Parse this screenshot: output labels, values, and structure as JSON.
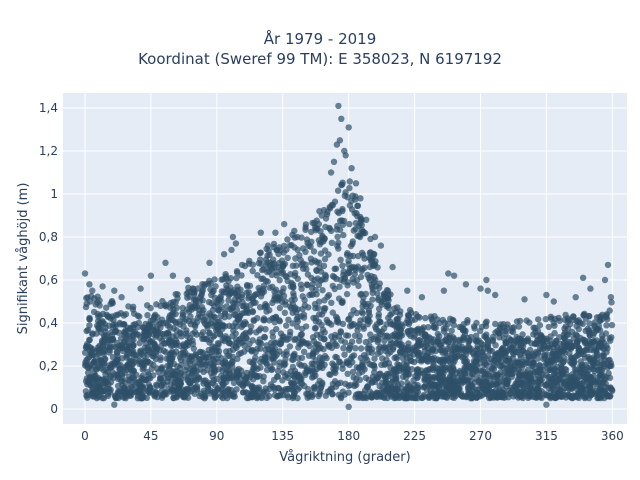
{
  "chart_data": {
    "type": "scatter",
    "title_lines": [
      "År 1979 - 2019",
      "Koordinat (Sweref 99 TM): E 358023, N 6197192"
    ],
    "xlabel": "Vågriktning (grader)",
    "ylabel": "Signifikant våghöjd (m)",
    "xlim": [
      -15,
      370
    ],
    "ylim": [
      -0.07,
      1.47
    ],
    "x_ticks": [
      0,
      45,
      90,
      135,
      180,
      225,
      270,
      315,
      360
    ],
    "x_tick_labels": [
      "0",
      "45",
      "90",
      "135",
      "180",
      "225",
      "270",
      "315",
      "360"
    ],
    "y_ticks": [
      0,
      0.2,
      0.4,
      0.6,
      0.8,
      1.0,
      1.2,
      1.4
    ],
    "y_tick_labels": [
      "0",
      "0,2",
      "0,4",
      "0,6",
      "0,8",
      "1",
      "1,2",
      "1,4"
    ],
    "grid": true,
    "legend": "none",
    "marker_color": "#2e5068",
    "background_color": "#e5ecf6",
    "series": [
      {
        "envelope_x": [
          0,
          10,
          20,
          30,
          45,
          60,
          75,
          90,
          105,
          120,
          135,
          150,
          160,
          165,
          170,
          175,
          180,
          185,
          190,
          200,
          210,
          225,
          240,
          270,
          300,
          315,
          330,
          345,
          355,
          360
        ],
        "envelope_y_high": [
          0.45,
          0.45,
          0.42,
          0.4,
          0.42,
          0.45,
          0.5,
          0.53,
          0.58,
          0.65,
          0.72,
          0.78,
          0.82,
          0.88,
          0.92,
          0.98,
          1.0,
          0.92,
          0.82,
          0.6,
          0.45,
          0.38,
          0.35,
          0.33,
          0.33,
          0.35,
          0.36,
          0.38,
          0.4,
          0.42
        ],
        "envelope_y_low": [
          0.05,
          0.05,
          0.05,
          0.05,
          0.05,
          0.05,
          0.05,
          0.05,
          0.05,
          0.05,
          0.05,
          0.05,
          0.05,
          0.05,
          0.05,
          0.05,
          0.05,
          0.05,
          0.05,
          0.05,
          0.05,
          0.05,
          0.05,
          0.05,
          0.05,
          0.05,
          0.05,
          0.05,
          0.05,
          0.05
        ],
        "outliers": [
          {
            "x": 0,
            "y": 0.63
          },
          {
            "x": 3,
            "y": 0.58
          },
          {
            "x": 5,
            "y": 0.55
          },
          {
            "x": 12,
            "y": 0.57
          },
          {
            "x": 20,
            "y": 0.55
          },
          {
            "x": 25,
            "y": 0.52
          },
          {
            "x": 38,
            "y": 0.56
          },
          {
            "x": 45,
            "y": 0.62
          },
          {
            "x": 55,
            "y": 0.68
          },
          {
            "x": 60,
            "y": 0.62
          },
          {
            "x": 70,
            "y": 0.6
          },
          {
            "x": 85,
            "y": 0.68
          },
          {
            "x": 95,
            "y": 0.72
          },
          {
            "x": 100,
            "y": 0.74
          },
          {
            "x": 101,
            "y": 0.8
          },
          {
            "x": 103,
            "y": 0.77
          },
          {
            "x": 120,
            "y": 0.82
          },
          {
            "x": 125,
            "y": 0.76
          },
          {
            "x": 130,
            "y": 0.82
          },
          {
            "x": 136,
            "y": 0.86
          },
          {
            "x": 145,
            "y": 0.8
          },
          {
            "x": 160,
            "y": 0.92
          },
          {
            "x": 168,
            "y": 1.1
          },
          {
            "x": 170,
            "y": 1.15
          },
          {
            "x": 172,
            "y": 1.23
          },
          {
            "x": 173,
            "y": 1.41
          },
          {
            "x": 174,
            "y": 1.25
          },
          {
            "x": 175,
            "y": 1.35
          },
          {
            "x": 177,
            "y": 1.2
          },
          {
            "x": 178,
            "y": 1.18
          },
          {
            "x": 180,
            "y": 1.31
          },
          {
            "x": 182,
            "y": 1.12
          },
          {
            "x": 185,
            "y": 1.05
          },
          {
            "x": 188,
            "y": 0.98
          },
          {
            "x": 192,
            "y": 0.88
          },
          {
            "x": 198,
            "y": 0.8
          },
          {
            "x": 202,
            "y": 0.76
          },
          {
            "x": 210,
            "y": 0.66
          },
          {
            "x": 220,
            "y": 0.55
          },
          {
            "x": 230,
            "y": 0.52
          },
          {
            "x": 245,
            "y": 0.55
          },
          {
            "x": 248,
            "y": 0.63
          },
          {
            "x": 252,
            "y": 0.62
          },
          {
            "x": 260,
            "y": 0.58
          },
          {
            "x": 270,
            "y": 0.56
          },
          {
            "x": 274,
            "y": 0.6
          },
          {
            "x": 275,
            "y": 0.55
          },
          {
            "x": 280,
            "y": 0.53
          },
          {
            "x": 300,
            "y": 0.51
          },
          {
            "x": 315,
            "y": 0.53
          },
          {
            "x": 320,
            "y": 0.5
          },
          {
            "x": 335,
            "y": 0.52
          },
          {
            "x": 340,
            "y": 0.61
          },
          {
            "x": 345,
            "y": 0.56
          },
          {
            "x": 355,
            "y": 0.6
          },
          {
            "x": 357,
            "y": 0.67
          },
          {
            "x": 359,
            "y": 0.52
          },
          {
            "x": 180,
            "y": 0.01
          },
          {
            "x": 20,
            "y": 0.02
          },
          {
            "x": 315,
            "y": 0.02
          }
        ]
      }
    ]
  }
}
